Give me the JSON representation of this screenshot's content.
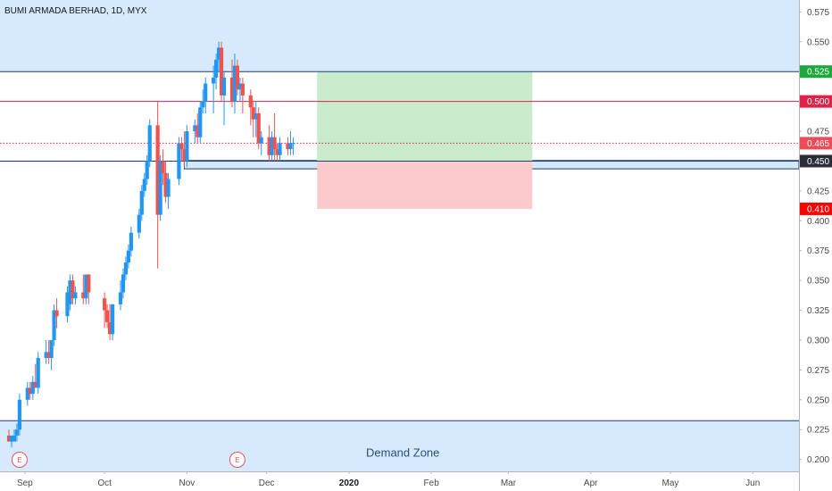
{
  "header": {
    "symbol_label": "BUMI ARMADA BERHAD, 1D, MYX"
  },
  "chart_data": {
    "type": "candlestick",
    "title": "BUMI ARMADA BERHAD, 1D, MYX",
    "ylim": [
      0.19,
      0.585
    ],
    "y_ticks": [
      "0.575",
      "0.550",
      "0.525",
      "0.500",
      "0.475",
      "0.450",
      "0.425",
      "0.400",
      "0.375",
      "0.350",
      "0.325",
      "0.300",
      "0.275",
      "0.250",
      "0.225",
      "0.200"
    ],
    "x_ticks": [
      "Sep",
      "Oct",
      "Nov",
      "Dec",
      "2020",
      "Feb",
      "Mar",
      "Apr",
      "May",
      "Jun"
    ],
    "x_tick_dates": [
      "2019-09-01",
      "2019-10-01",
      "2019-11-01",
      "2019-12-01",
      "2020-01-01",
      "2020-02-01",
      "2020-03-01",
      "2020-04-01",
      "2020-05-01",
      "2020-06-01"
    ],
    "xlim": [
      "2019-08-26",
      "2020-06-10"
    ],
    "candles": [
      [
        "2019-08-26",
        0.22,
        0.225,
        0.215,
        0.215
      ],
      [
        "2019-08-27",
        0.215,
        0.22,
        0.21,
        0.22
      ],
      [
        "2019-08-28",
        0.215,
        0.225,
        0.215,
        0.22
      ],
      [
        "2019-08-29",
        0.22,
        0.23,
        0.215,
        0.225
      ],
      [
        "2019-08-30",
        0.225,
        0.255,
        0.22,
        0.25
      ],
      [
        "2019-09-02",
        0.25,
        0.265,
        0.245,
        0.26
      ],
      [
        "2019-09-03",
        0.26,
        0.265,
        0.25,
        0.255
      ],
      [
        "2019-09-04",
        0.255,
        0.27,
        0.25,
        0.265
      ],
      [
        "2019-09-05",
        0.265,
        0.28,
        0.26,
        0.26
      ],
      [
        "2019-09-06",
        0.26,
        0.29,
        0.255,
        0.285
      ],
      [
        "2019-09-09",
        0.285,
        0.3,
        0.28,
        0.29
      ],
      [
        "2019-09-10",
        0.29,
        0.3,
        0.28,
        0.285
      ],
      [
        "2019-09-11",
        0.285,
        0.3,
        0.275,
        0.3
      ],
      [
        "2019-09-12",
        0.3,
        0.33,
        0.295,
        0.325
      ],
      [
        "2019-09-13",
        0.325,
        0.335,
        0.31,
        0.32
      ],
      [
        "2019-09-17",
        0.32,
        0.345,
        0.315,
        0.34
      ],
      [
        "2019-09-18",
        0.33,
        0.355,
        0.325,
        0.35
      ],
      [
        "2019-09-19",
        0.35,
        0.355,
        0.33,
        0.335
      ],
      [
        "2019-09-20",
        0.335,
        0.345,
        0.33,
        0.34
      ],
      [
        "2019-09-23",
        0.34,
        0.355,
        0.33,
        0.335
      ],
      [
        "2019-09-24",
        0.335,
        0.355,
        0.33,
        0.355
      ],
      [
        "2019-09-25",
        0.355,
        0.355,
        0.33,
        0.34
      ],
      [
        "2019-10-01",
        0.335,
        0.34,
        0.31,
        0.325
      ],
      [
        "2019-10-02",
        0.325,
        0.33,
        0.31,
        0.315
      ],
      [
        "2019-10-03",
        0.315,
        0.33,
        0.3,
        0.305
      ],
      [
        "2019-10-04",
        0.305,
        0.33,
        0.3,
        0.33
      ],
      [
        "2019-10-07",
        0.33,
        0.35,
        0.325,
        0.34
      ],
      [
        "2019-10-08",
        0.34,
        0.36,
        0.335,
        0.355
      ],
      [
        "2019-10-09",
        0.355,
        0.37,
        0.35,
        0.365
      ],
      [
        "2019-10-10",
        0.365,
        0.38,
        0.36,
        0.375
      ],
      [
        "2019-10-11",
        0.375,
        0.395,
        0.37,
        0.39
      ],
      [
        "2019-10-14",
        0.39,
        0.41,
        0.385,
        0.405
      ],
      [
        "2019-10-15",
        0.405,
        0.43,
        0.4,
        0.425
      ],
      [
        "2019-10-16",
        0.425,
        0.44,
        0.42,
        0.435
      ],
      [
        "2019-10-17",
        0.435,
        0.455,
        0.43,
        0.45
      ],
      [
        "2019-10-18",
        0.45,
        0.485,
        0.445,
        0.48
      ],
      [
        "2019-10-21",
        0.48,
        0.5,
        0.36,
        0.405
      ],
      [
        "2019-10-22",
        0.405,
        0.455,
        0.4,
        0.45
      ],
      [
        "2019-10-23",
        0.45,
        0.46,
        0.43,
        0.44
      ],
      [
        "2019-10-24",
        0.44,
        0.45,
        0.415,
        0.42
      ],
      [
        "2019-10-25",
        0.42,
        0.44,
        0.41,
        0.435
      ],
      [
        "2019-10-29",
        0.435,
        0.47,
        0.43,
        0.465
      ],
      [
        "2019-10-30",
        0.465,
        0.47,
        0.45,
        0.46
      ],
      [
        "2019-10-31",
        0.46,
        0.475,
        0.445,
        0.45
      ],
      [
        "2019-11-01",
        0.45,
        0.48,
        0.445,
        0.475
      ],
      [
        "2019-11-04",
        0.475,
        0.485,
        0.465,
        0.48
      ],
      [
        "2019-11-05",
        0.48,
        0.49,
        0.465,
        0.47
      ],
      [
        "2019-11-06",
        0.47,
        0.5,
        0.465,
        0.495
      ],
      [
        "2019-11-07",
        0.495,
        0.51,
        0.49,
        0.5
      ],
      [
        "2019-11-08",
        0.5,
        0.52,
        0.49,
        0.515
      ],
      [
        "2019-11-11",
        0.515,
        0.53,
        0.49,
        0.52
      ],
      [
        "2019-11-12",
        0.52,
        0.54,
        0.51,
        0.535
      ],
      [
        "2019-11-13",
        0.535,
        0.55,
        0.525,
        0.545
      ],
      [
        "2019-11-14",
        0.545,
        0.55,
        0.5,
        0.505
      ],
      [
        "2019-11-15",
        0.505,
        0.525,
        0.48,
        0.52
      ],
      [
        "2019-11-18",
        0.52,
        0.535,
        0.495,
        0.5
      ],
      [
        "2019-11-19",
        0.5,
        0.54,
        0.49,
        0.53
      ],
      [
        "2019-11-20",
        0.53,
        0.535,
        0.505,
        0.51
      ],
      [
        "2019-11-21",
        0.51,
        0.52,
        0.5,
        0.515
      ],
      [
        "2019-11-22",
        0.515,
        0.52,
        0.49,
        0.505
      ],
      [
        "2019-11-25",
        0.505,
        0.51,
        0.48,
        0.495
      ],
      [
        "2019-11-26",
        0.495,
        0.5,
        0.47,
        0.485
      ],
      [
        "2019-11-27",
        0.485,
        0.5,
        0.47,
        0.49
      ],
      [
        "2019-11-28",
        0.49,
        0.495,
        0.46,
        0.465
      ],
      [
        "2019-11-29",
        0.465,
        0.475,
        0.455,
        0.47
      ],
      [
        "2019-12-02",
        0.47,
        0.48,
        0.45,
        0.455
      ],
      [
        "2019-12-03",
        0.455,
        0.475,
        0.45,
        0.47
      ],
      [
        "2019-12-04",
        0.47,
        0.49,
        0.45,
        0.46
      ],
      [
        "2019-12-05",
        0.46,
        0.465,
        0.45,
        0.455
      ],
      [
        "2019-12-06",
        0.455,
        0.47,
        0.45,
        0.465
      ],
      [
        "2019-12-09",
        0.465,
        0.47,
        0.455,
        0.46
      ],
      [
        "2019-12-10",
        0.46,
        0.475,
        0.455,
        0.465
      ],
      [
        "2019-12-11",
        0.465,
        0.47,
        0.455,
        0.465
      ]
    ],
    "horizontal_lines": [
      {
        "price": 0.525,
        "color": "#1e3a7a",
        "style": "solid",
        "label": "0.525",
        "label_color": "#1ea83c"
      },
      {
        "price": 0.5,
        "color": "#e0214a",
        "style": "solid",
        "label": "0.500",
        "label_color": "#e0214a"
      },
      {
        "price": 0.465,
        "color": "#e0214a",
        "style": "dotted",
        "label": "0.465",
        "label_color": "#ef4a5a"
      },
      {
        "price": 0.45,
        "color": "#1e3a7a",
        "style": "solid",
        "label": "0.450",
        "label_color": "#2a2e39"
      },
      {
        "price": 0.41,
        "color": "#ff0000",
        "style": "none",
        "label": "0.410",
        "label_color": "#ff0000"
      }
    ],
    "support_band": {
      "from": 0.4435,
      "to": 0.4505,
      "fill": "#d6e8fb",
      "border": "#1e3a7a",
      "start_date": "2019-10-31"
    },
    "position": {
      "start_date": "2019-12-20",
      "end_date": "2020-03-10",
      "entry": 0.45,
      "target": 0.525,
      "stop": 0.41,
      "profit_color": "#c9ebcb",
      "loss_color": "#fccacb"
    },
    "zones": [
      {
        "name": "upper",
        "from": 0.525,
        "to": 0.585,
        "fill": "#d6eafb"
      },
      {
        "name": "demand",
        "from": 0.19,
        "to": 0.2325,
        "fill": "#d6eafb",
        "label": "Demand Zone"
      }
    ],
    "events": [
      {
        "date": "2019-08-30",
        "label": "E"
      },
      {
        "date": "2019-11-20",
        "label": "E"
      }
    ],
    "up_color": "#2196f3",
    "down_color": "#ef5350"
  }
}
